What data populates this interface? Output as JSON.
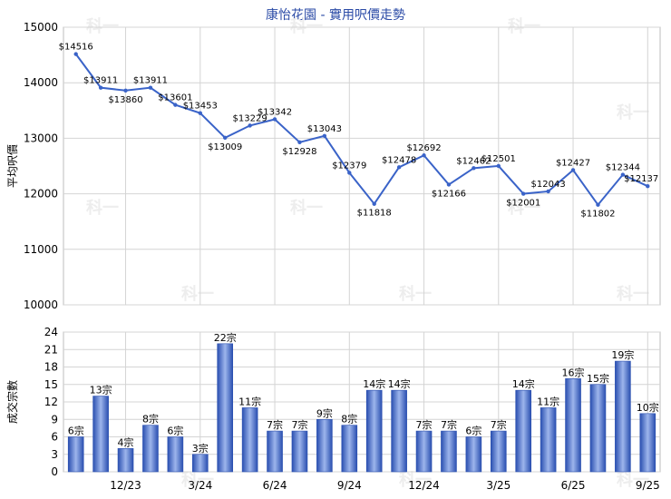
{
  "title": "康怡花園 - 實用呎價走勢",
  "watermark": "科一",
  "colors": {
    "line": "#3a63c8",
    "title": "#2a4aa6",
    "grid": "#d4d4d4",
    "bar_dark": "#2a4fb0",
    "bar_light": "#9db5ec",
    "text": "#000000"
  },
  "chart_data": [
    {
      "type": "line",
      "ylabel": "平均呎價",
      "ylim": [
        10000,
        15000
      ],
      "yticks": [
        10000,
        11000,
        12000,
        13000,
        14000,
        15000
      ],
      "values": [
        14516,
        13911,
        13860,
        13911,
        13601,
        13453,
        13009,
        13229,
        13342,
        12928,
        13043,
        12379,
        11818,
        12478,
        12692,
        12166,
        12462,
        12501,
        12001,
        12043,
        12427,
        11802,
        12344,
        12137
      ],
      "labels": [
        "$14516",
        "$13911",
        "$13860",
        "$13911",
        "$13601",
        "$13453",
        "$13009",
        "$13229",
        "$13342",
        "$12928",
        "$13043",
        "$12379",
        "$11818",
        "$12478",
        "$12692",
        "$12166",
        "$12462",
        "$12501",
        "$12001",
        "$12043",
        "$12427",
        "$11802",
        "$12344",
        "$12137"
      ]
    },
    {
      "type": "bar",
      "ylabel": "成交宗數",
      "ylim": [
        0,
        24
      ],
      "yticks": [
        0,
        3,
        6,
        9,
        12,
        15,
        18,
        21,
        24
      ],
      "values": [
        6,
        13,
        4,
        8,
        6,
        3,
        22,
        11,
        7,
        7,
        9,
        8,
        14,
        14,
        7,
        7,
        6,
        7,
        14,
        11,
        16,
        15,
        19,
        10
      ],
      "labels": [
        "6宗",
        "13宗",
        "4宗",
        "8宗",
        "6宗",
        "3宗",
        "22宗",
        "11宗",
        "7宗",
        "7宗",
        "9宗",
        "8宗",
        "14宗",
        "14宗",
        "7宗",
        "7宗",
        "6宗",
        "7宗",
        "14宗",
        "11宗",
        "16宗",
        "15宗",
        "19宗",
        "10宗"
      ],
      "x_tick_labels": [
        {
          "index": 2,
          "label": "12/23"
        },
        {
          "index": 5,
          "label": "3/24"
        },
        {
          "index": 8,
          "label": "6/24"
        },
        {
          "index": 11,
          "label": "9/24"
        },
        {
          "index": 14,
          "label": "12/24"
        },
        {
          "index": 17,
          "label": "3/25"
        },
        {
          "index": 20,
          "label": "6/25"
        },
        {
          "index": 23,
          "label": "9/25"
        }
      ]
    }
  ]
}
